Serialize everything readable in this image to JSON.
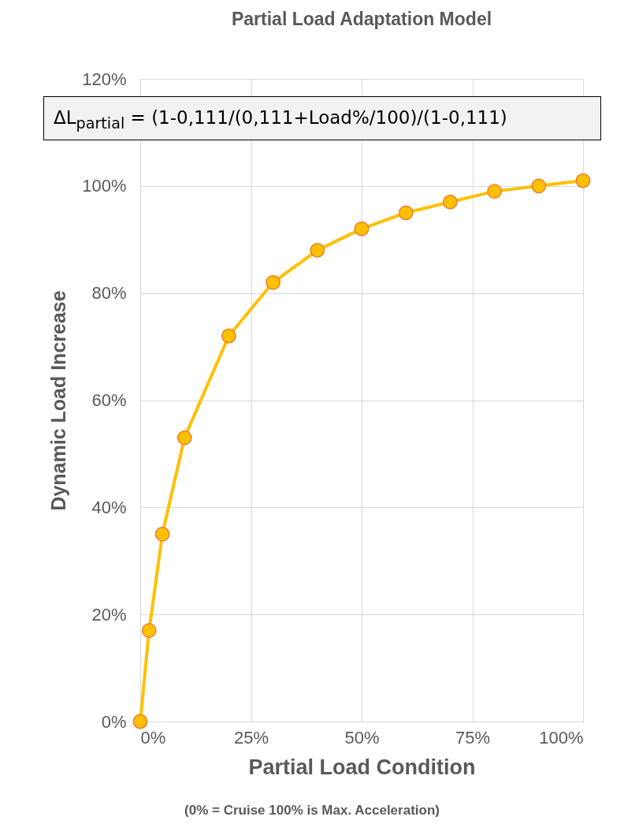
{
  "chart_data": {
    "type": "line",
    "title": "Partial Load Adaptation Model",
    "xlabel": "Partial Load Condition",
    "ylabel": "Dynamic Load Increase",
    "annotations": [
      "ΔL$_{partial}$ = (1-0,111/(0,111+Load%/100)/(1-0,111)",
      "(0% = Cruise 100% is Max. Acceleration)"
    ],
    "x": [
      0,
      2,
      5,
      10,
      20,
      30,
      40,
      50,
      60,
      70,
      80,
      90,
      100
    ],
    "series": [
      {
        "color": "#ffc000",
        "values": [
          0,
          17,
          35,
          53,
          72,
          82,
          88,
          92,
          95,
          97,
          99,
          100,
          101
        ]
      }
    ],
    "xlim": [
      0,
      100
    ],
    "xticks": [
      {
        "value": 0,
        "label": "0%"
      },
      {
        "value": 25,
        "label": "25%"
      },
      {
        "value": 50,
        "label": "50%"
      },
      {
        "value": 75,
        "label": "75%"
      },
      {
        "value": 100,
        "label": "100%"
      }
    ],
    "ylim": [
      0,
      120
    ],
    "yticks": [
      {
        "value": 0,
        "label": "0%"
      },
      {
        "value": 20,
        "label": "20%"
      },
      {
        "value": 40,
        "label": "40%"
      },
      {
        "value": 60,
        "label": "60%"
      },
      {
        "value": 80,
        "label": "80%"
      },
      {
        "value": 100,
        "label": "100%"
      },
      {
        "value": 120,
        "label": "120%"
      }
    ],
    "grid": true,
    "marker": "circle"
  }
}
